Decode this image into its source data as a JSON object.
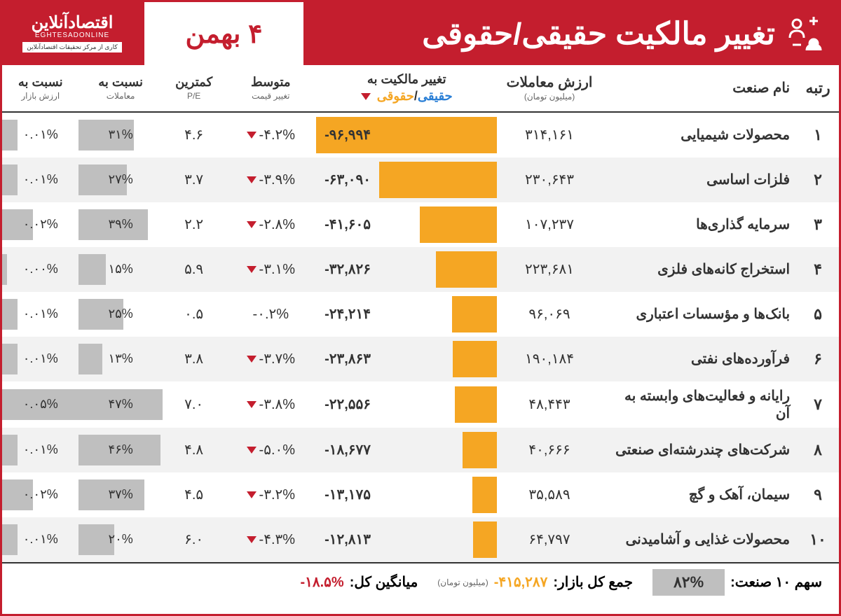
{
  "header": {
    "title": "تغییر مالکیت حقیقی/حقوقی",
    "date": "۴ بهمن",
    "logo_main": "اقتصادآنلاین",
    "logo_sub": "EGHTESADONLINE",
    "logo_tag": "کاری از مرکز تحقیقات اقتصادآنلاین"
  },
  "columns": {
    "rank": "رتبه",
    "name": "نام صنعت",
    "value": "ارزش معاملات",
    "value_sub": "(میلیون تومان)",
    "change": "تغییر مالکیت به",
    "change_real": "حقیقی",
    "change_sep": "/",
    "change_legal": "حقوقی",
    "avg": "متوسط",
    "avg_sub": "تغییر قیمت",
    "pe": "کمترین",
    "pe_sub": "P/E",
    "trade": "نسبت به",
    "trade_sub": "معاملات",
    "market": "نسبت به",
    "market_sub": "ارزش بازار"
  },
  "chart": {
    "bar_color": "#f5a623",
    "pct_bar_color": "#bfbfbf",
    "max_change": 96994,
    "max_trade_pct": 47,
    "max_market_pct": 0.05
  },
  "rows": [
    {
      "rank": "۱",
      "name": "محصولات شیمیایی",
      "value": "۳۱۴,۱۶۱",
      "change": "-۹۶,۹۹۴",
      "change_num": 96994,
      "avg": "-۴.۲%",
      "has_tri": true,
      "pe": "۴.۶",
      "trade": "۳۱%",
      "trade_num": 31,
      "market": "۰.۰۱%",
      "market_num": 0.01
    },
    {
      "rank": "۲",
      "name": "فلزات اساسی",
      "value": "۲۳۰,۶۴۳",
      "change": "-۶۳,۰۹۰",
      "change_num": 63090,
      "avg": "-۳.۹%",
      "has_tri": true,
      "pe": "۳.۷",
      "trade": "۲۷%",
      "trade_num": 27,
      "market": "۰.۰۱%",
      "market_num": 0.01
    },
    {
      "rank": "۳",
      "name": "سرمایه گذاری‌ها",
      "value": "۱۰۷,۲۳۷",
      "change": "-۴۱,۶۰۵",
      "change_num": 41605,
      "avg": "-۲.۸%",
      "has_tri": true,
      "pe": "۲.۲",
      "trade": "۳۹%",
      "trade_num": 39,
      "market": "۰.۰۲%",
      "market_num": 0.02
    },
    {
      "rank": "۴",
      "name": "استخراج کانه‌های فلزی",
      "value": "۲۲۳,۶۸۱",
      "change": "-۳۲,۸۲۶",
      "change_num": 32826,
      "avg": "-۳.۱%",
      "has_tri": true,
      "pe": "۵.۹",
      "trade": "۱۵%",
      "trade_num": 15,
      "market": "۰.۰۰%",
      "market_num": 0.003
    },
    {
      "rank": "۵",
      "name": "بانک‌ها و مؤسسات اعتباری",
      "value": "۹۶,۰۶۹",
      "change": "-۲۴,۲۱۴",
      "change_num": 24214,
      "avg": "-۰.۲%",
      "has_tri": false,
      "pe": "۰.۵",
      "trade": "۲۵%",
      "trade_num": 25,
      "market": "۰.۰۱%",
      "market_num": 0.01
    },
    {
      "rank": "۶",
      "name": "فرآورده‌های نفتی",
      "value": "۱۹۰,۱۸۴",
      "change": "-۲۳,۸۶۳",
      "change_num": 23863,
      "avg": "-۳.۷%",
      "has_tri": true,
      "pe": "۳.۸",
      "trade": "۱۳%",
      "trade_num": 13,
      "market": "۰.۰۱%",
      "market_num": 0.01
    },
    {
      "rank": "۷",
      "name": "رایانه و فعالیت‌های وابسته به آن",
      "value": "۴۸,۴۴۳",
      "change": "-۲۲,۵۵۶",
      "change_num": 22556,
      "avg": "-۳.۸%",
      "has_tri": true,
      "pe": "۷.۰",
      "trade": "۴۷%",
      "trade_num": 47,
      "market": "۰.۰۵%",
      "market_num": 0.05
    },
    {
      "rank": "۸",
      "name": "شرکت‌های چندرشته‌ای صنعتی",
      "value": "۴۰,۶۶۶",
      "change": "-۱۸,۶۷۷",
      "change_num": 18677,
      "avg": "-۵.۰%",
      "has_tri": true,
      "pe": "۴.۸",
      "trade": "۴۶%",
      "trade_num": 46,
      "market": "۰.۰۱%",
      "market_num": 0.01
    },
    {
      "rank": "۹",
      "name": "سیمان، آهک و گچ",
      "value": "۳۵,۵۸۹",
      "change": "-۱۳,۱۷۵",
      "change_num": 13175,
      "avg": "-۳.۲%",
      "has_tri": true,
      "pe": "۴.۵",
      "trade": "۳۷%",
      "trade_num": 37,
      "market": "۰.۰۲%",
      "market_num": 0.02
    },
    {
      "rank": "۱۰",
      "name": "محصولات غذایی و آشامیدنی",
      "value": "۶۴,۷۹۷",
      "change": "-۱۲,۸۱۳",
      "change_num": 12813,
      "avg": "-۴.۳%",
      "has_tri": true,
      "pe": "۶.۰",
      "trade": "۲۰%",
      "trade_num": 20,
      "market": "۰.۰۱%",
      "market_num": 0.01
    }
  ],
  "footer": {
    "share_label": "سهم ۱۰ صنعت:",
    "share_value": "۸۲%",
    "total_label": "جمع کل بازار:",
    "total_value": "-۴۱۵,۲۸۷",
    "total_sub": "(میلیون تومان)",
    "avg_label": "میانگین کل:",
    "avg_value": "-۱۸.۵%"
  }
}
